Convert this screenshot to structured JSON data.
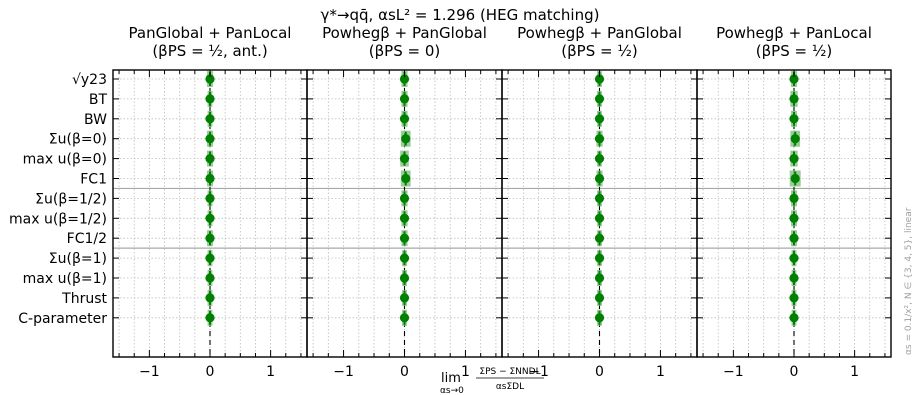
{
  "chart_data": {
    "type": "scatter",
    "title": "γ*→qq̄, αsL² = 1.296 (HEG matching)",
    "xlabel_lim": "lim",
    "xlabel_lim_sub": "αs→0",
    "xlabel_numerator": "ΣPS − ΣNNDL",
    "xlabel_denominator": "αsΣDL",
    "side_note": "αs = 0.1/x², N ∈ {3, 4, 5}, linear",
    "xlim": [
      -1.6,
      1.6
    ],
    "xticks": [
      -1,
      0,
      1
    ],
    "xtick_labels": [
      "−1",
      "0",
      "1"
    ],
    "grid": true,
    "observables": [
      "√y23",
      "BT",
      "BW",
      "Σu(β=0)",
      "max u(β=0)",
      "FC1",
      "Σu(β=1/2)",
      "max u(β=1/2)",
      "FC1/2",
      "Σu(β=1)",
      "max u(β=1)",
      "Thrust",
      "C-parameter"
    ],
    "separators_after_index": [
      5,
      8
    ],
    "point_color": "#008000",
    "band_color": "#7fbf7f",
    "panels": [
      {
        "title_line1": "PanGlobal + PanLocal",
        "title_line2": "(βPS = ½, ant.)",
        "values": [
          0,
          0,
          0,
          0,
          0,
          0,
          0,
          0,
          0,
          0,
          0,
          0,
          0
        ],
        "band_halfwidth": [
          0.05,
          0.04,
          0.04,
          0.05,
          0.05,
          0.05,
          0.04,
          0.04,
          0.05,
          0.04,
          0.04,
          0.04,
          0.04
        ]
      },
      {
        "title_line1": "Powhegβ + PanGlobal",
        "title_line2": "(βPS = 0)",
        "values": [
          0,
          0,
          0,
          0.02,
          0,
          0.02,
          0,
          0,
          0,
          0,
          0,
          0,
          0
        ],
        "band_halfwidth": [
          0.05,
          0.05,
          0.05,
          0.08,
          0.07,
          0.08,
          0.05,
          0.05,
          0.05,
          0.04,
          0.04,
          0.04,
          0.04
        ]
      },
      {
        "title_line1": "Powhegβ + PanGlobal",
        "title_line2": "(βPS = ½)",
        "values": [
          0,
          0,
          0,
          0,
          0,
          0,
          0,
          0,
          0,
          0,
          0,
          0,
          0
        ],
        "band_halfwidth": [
          0.04,
          0.04,
          0.04,
          0.05,
          0.04,
          0.05,
          0.04,
          0.04,
          0.04,
          0.04,
          0.04,
          0.04,
          0.04
        ]
      },
      {
        "title_line1": "Powhegβ + PanLocal",
        "title_line2": "(βPS = ½)",
        "values": [
          0,
          0,
          0,
          0.02,
          0,
          0.02,
          0,
          0,
          0,
          0,
          0,
          0,
          0
        ],
        "band_halfwidth": [
          0.05,
          0.06,
          0.05,
          0.08,
          0.06,
          0.09,
          0.05,
          0.05,
          0.05,
          0.04,
          0.04,
          0.04,
          0.04
        ]
      }
    ]
  }
}
